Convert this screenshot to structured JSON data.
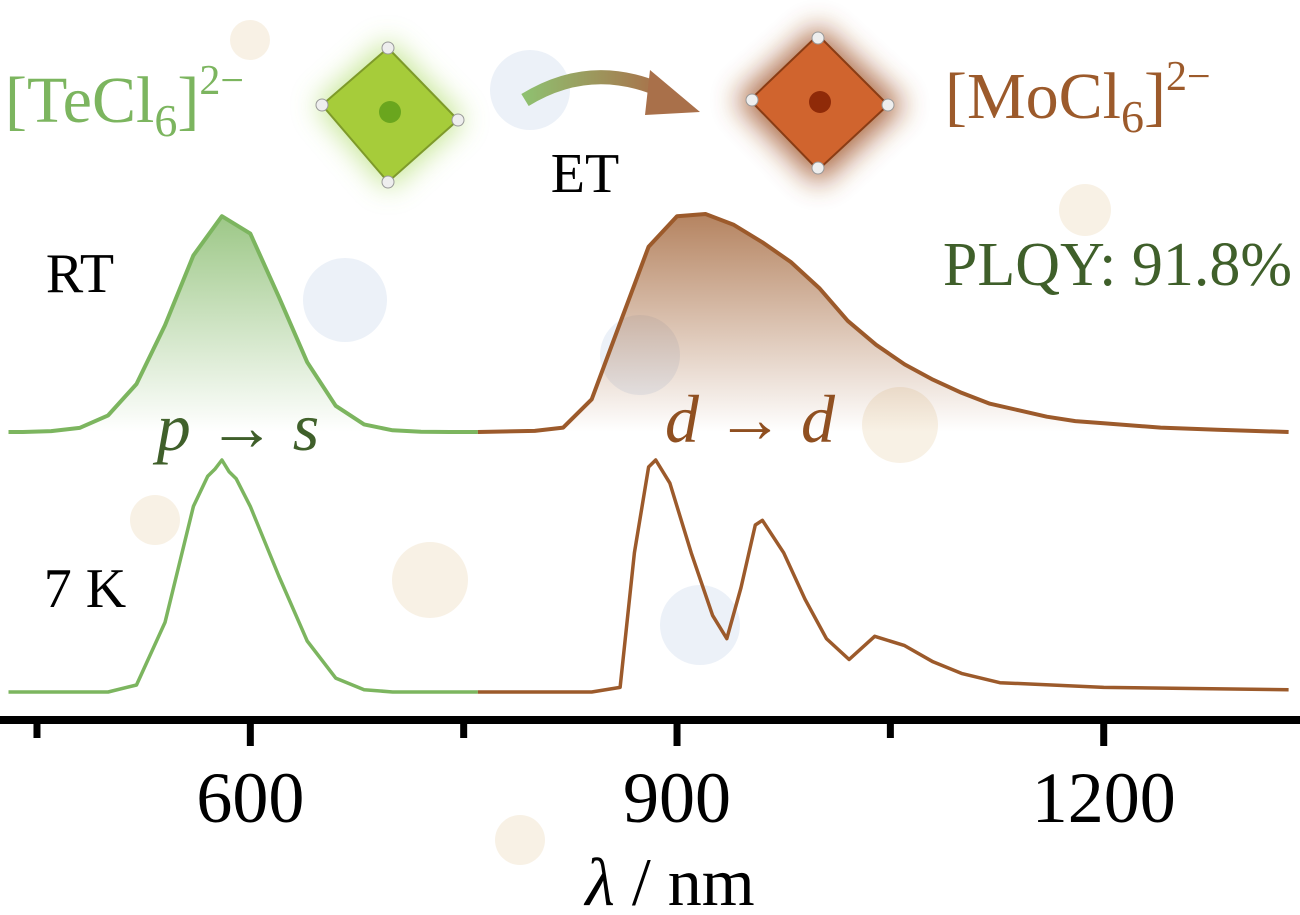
{
  "chart_data": {
    "type": "line",
    "species": [
      {
        "base": "[TeCl",
        "sub": "6",
        "close": "]",
        "sup": "2−",
        "color": "#7cb55f"
      },
      {
        "base": "[MoCl",
        "sub": "6",
        "close": "]",
        "sup": "2−",
        "color": "#9c5a2b"
      }
    ],
    "transfer_label": "ET",
    "plqy_label": "PLQY: 91.8%",
    "transitions": [
      {
        "label": "p → s",
        "color": "#3f5f2a"
      },
      {
        "label": "d → d",
        "color": "#8f4f20"
      }
    ],
    "x_label": {
      "symbol": "λ",
      "unit": " / nm"
    },
    "xlim": [
      424,
      1338
    ],
    "xticks": [
      600,
      900,
      1200
    ],
    "xminor_ticks": [
      450,
      750,
      1050
    ],
    "panels": [
      {
        "label": "RT",
        "series": [
          {
            "color": "#7cb55f",
            "x": [
              430,
              440,
              460,
              480,
              500,
              520,
              540,
              560,
              580,
              600,
              620,
              640,
              660,
              680,
              700,
              720,
              740,
              760
            ],
            "values": [
              0,
              0,
              0.004,
              0.019,
              0.076,
              0.22,
              0.49,
              0.81,
              0.99,
              0.91,
              0.62,
              0.32,
              0.12,
              0.035,
              0.008,
              0.001,
              0,
              0
            ]
          },
          {
            "color": "#9c5a2b",
            "x": [
              760,
              800,
              820,
              840,
              860,
              880,
              900,
              920,
              940,
              960,
              980,
              1000,
              1020,
              1040,
              1060,
              1080,
              1100,
              1120,
              1140,
              1160,
              1180,
              1200,
              1240,
              1280,
              1330
            ],
            "values": [
              0,
              0.005,
              0.02,
              0.15,
              0.5,
              0.85,
              0.99,
              1.0,
              0.95,
              0.87,
              0.78,
              0.66,
              0.51,
              0.4,
              0.31,
              0.24,
              0.18,
              0.13,
              0.1,
              0.07,
              0.05,
              0.04,
              0.02,
              0.01,
              0
            ]
          }
        ]
      },
      {
        "label": "7 K",
        "series": [
          {
            "color": "#7cb55f",
            "x": [
              430,
              500,
              520,
              540,
              560,
              570,
              575,
              580,
              585,
              590,
              600,
              620,
              640,
              660,
              680,
              700,
              760
            ],
            "values": [
              0,
              0,
              0.03,
              0.3,
              0.8,
              0.93,
              0.96,
              1.0,
              0.95,
              0.92,
              0.8,
              0.5,
              0.22,
              0.06,
              0.01,
              0,
              0
            ]
          },
          {
            "color": "#9c5a2b",
            "x": [
              760,
              840,
              860,
              870,
              880,
              885,
              895,
              910,
              925,
              935,
              945,
              955,
              960,
              975,
              990,
              1005,
              1021,
              1039,
              1060,
              1080,
              1100,
              1127,
              1200,
              1330
            ],
            "values": [
              0,
              0,
              0.02,
              0.6,
              0.97,
              1.0,
              0.9,
              0.6,
              0.33,
              0.23,
              0.45,
              0.72,
              0.74,
              0.6,
              0.4,
              0.23,
              0.14,
              0.24,
              0.2,
              0.13,
              0.08,
              0.04,
              0.02,
              0.01
            ]
          }
        ]
      }
    ]
  }
}
